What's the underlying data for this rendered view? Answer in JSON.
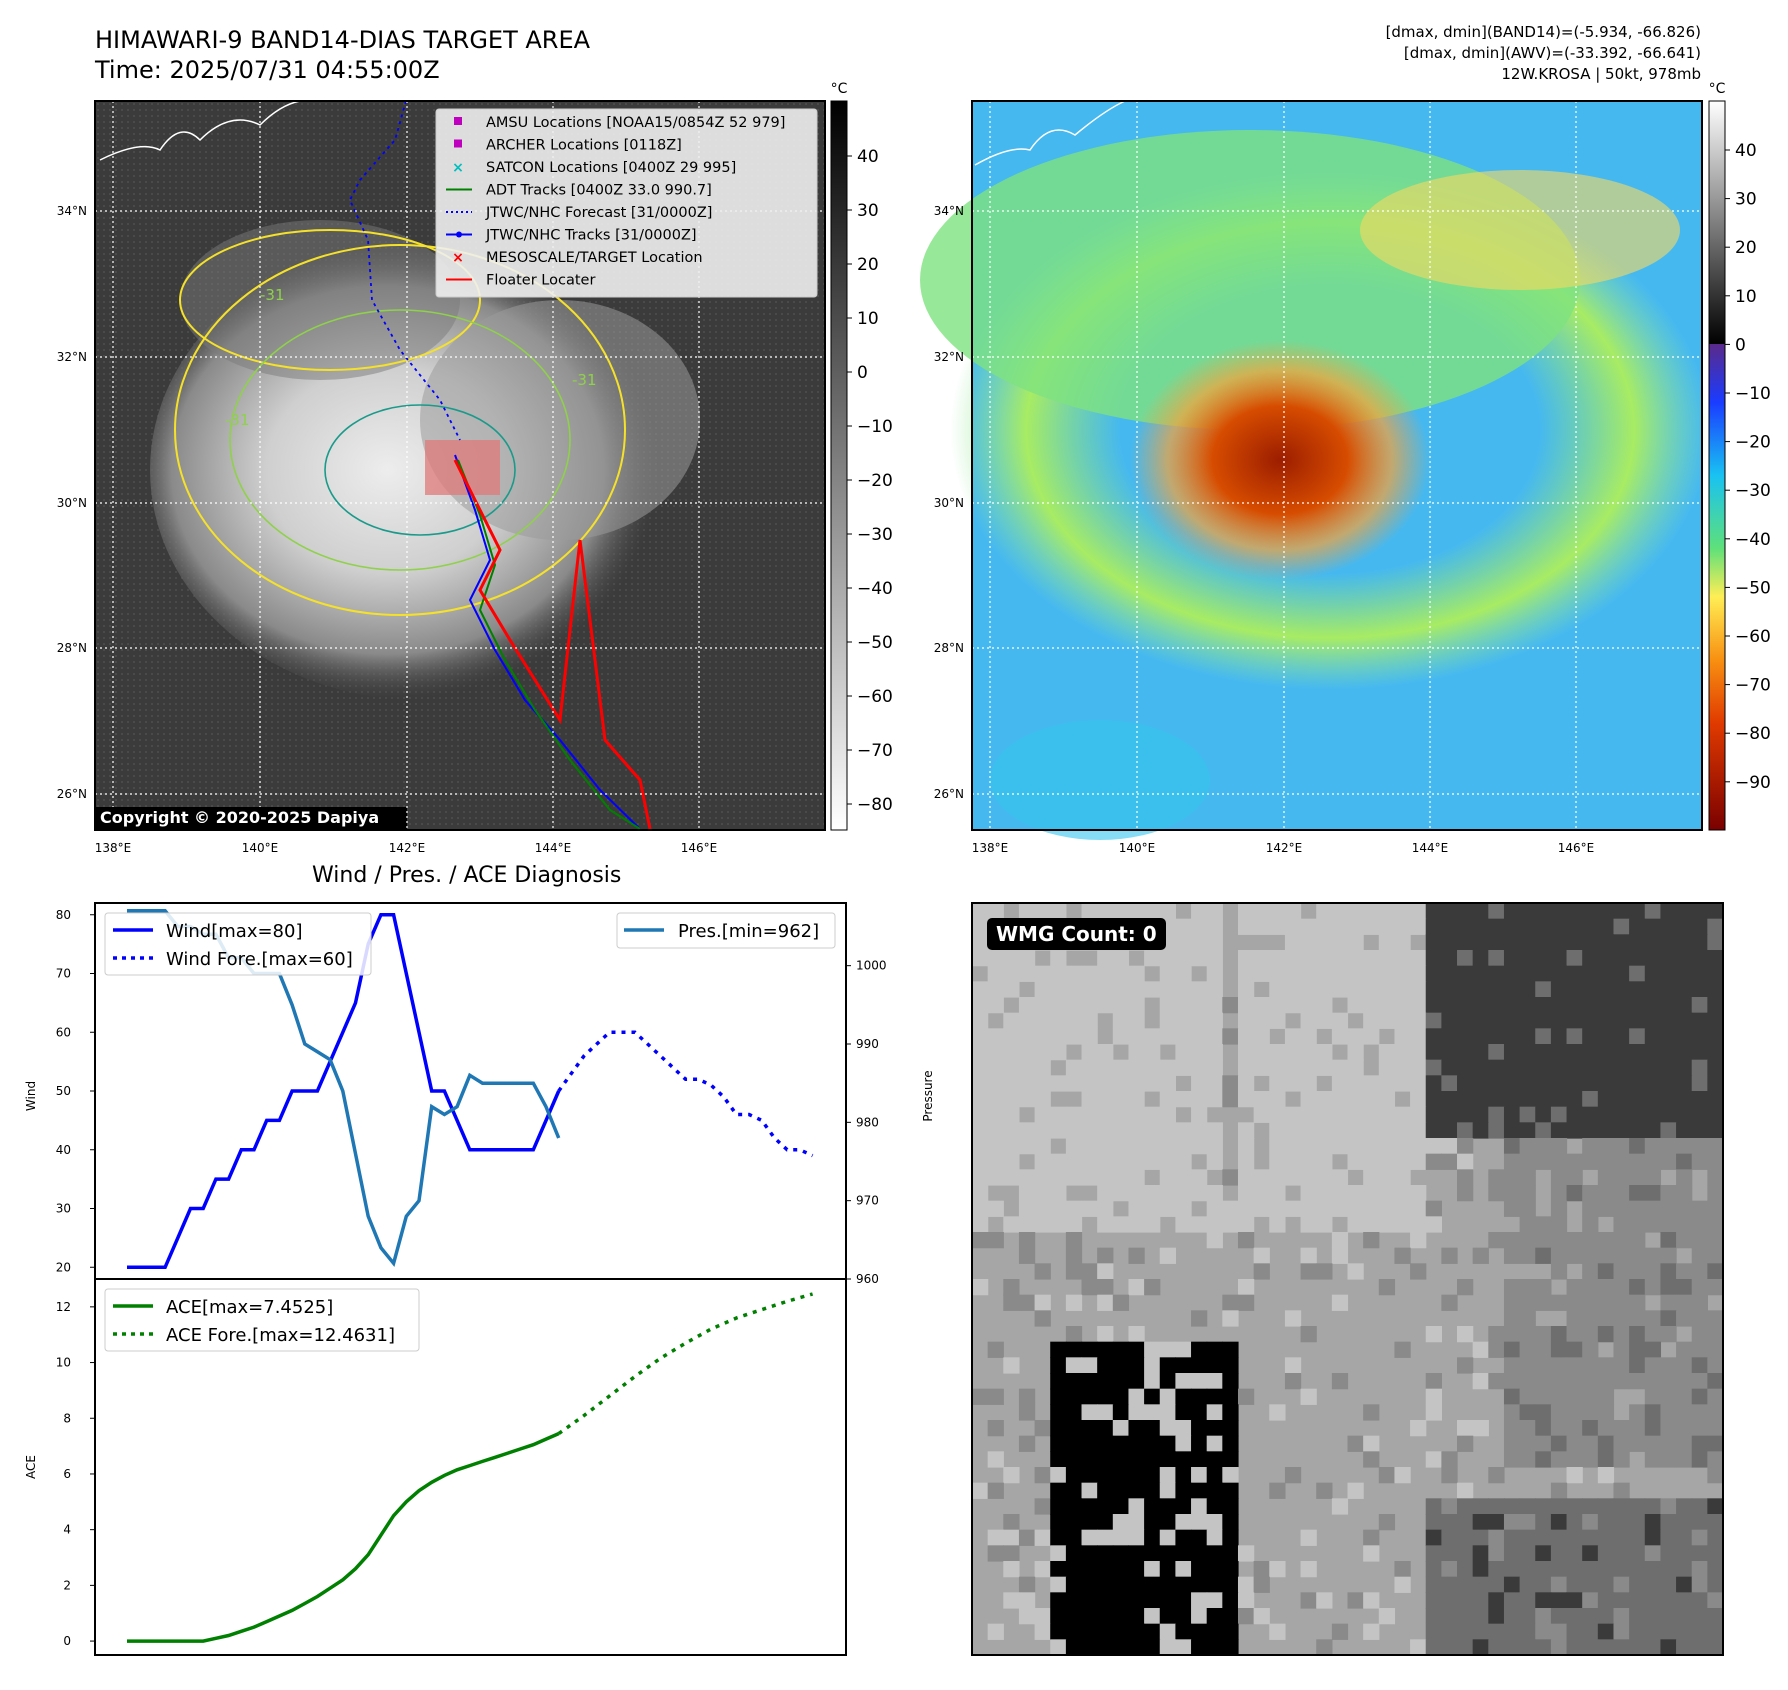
{
  "header": {
    "title_line1": "HIMAWARI-9 BAND14-DIAS TARGET AREA",
    "title_line2": "Time: 2025/07/31 04:55:00Z",
    "info_line1": "[dmax, dmin](BAND14)=(-5.934, -66.826)",
    "info_line2": "[dmax, dmin](AWV)=(-33.392, -66.641)",
    "info_line3": "12W.KROSA | 50kt, 978mb"
  },
  "copyright": "Copyright © 2020-2025 Dapiya",
  "map": {
    "lon_ticks": [
      "138°E",
      "140°E",
      "142°E",
      "144°E",
      "146°E"
    ],
    "lat_ticks": [
      "34°N",
      "32°N",
      "30°N",
      "28°N",
      "26°N"
    ],
    "colorbar_unit": "°C",
    "left_colorbar_ticks": [
      "40",
      "30",
      "20",
      "10",
      "0",
      "−10",
      "−20",
      "−30",
      "−40",
      "−50",
      "−60",
      "−70",
      "−80"
    ],
    "right_colorbar_ticks": [
      "40",
      "30",
      "20",
      "10",
      "0",
      "−10",
      "−20",
      "−30",
      "−40",
      "−50",
      "−60",
      "−70",
      "−80",
      "−90"
    ],
    "contour_labels": [
      "-31",
      "-31",
      "-31"
    ],
    "legend": [
      {
        "label": "AMSU Locations [NOAA15/0854Z 52 979]",
        "marker": "square",
        "color": "#bf00bf"
      },
      {
        "label": "ARCHER Locations [0118Z]",
        "marker": "square",
        "color": "#bf00bf"
      },
      {
        "label": "SATCON Locations [0400Z 29 995]",
        "marker": "x",
        "color": "#00bfbf"
      },
      {
        "label": "ADT Tracks [0400Z 33.0 990.7]",
        "marker": "line",
        "color": "#008000"
      },
      {
        "label": "JTWC/NHC Forecast [31/0000Z]",
        "marker": "dotted",
        "color": "#0000ff"
      },
      {
        "label": "JTWC/NHC Tracks [31/0000Z]",
        "marker": "line-dot",
        "color": "#0000ff"
      },
      {
        "label": "MESOSCALE/TARGET Location",
        "marker": "x",
        "color": "#ff0000"
      },
      {
        "label": "Floater Locater",
        "marker": "line",
        "color": "#ff0000"
      }
    ]
  },
  "diagnosis": {
    "title": "Wind / Pres. / ACE Diagnosis",
    "wind_axis_label": "Wind",
    "pressure_axis_label": "Pressure",
    "ace_axis_label": "ACE",
    "wind_ticks": [
      "80",
      "70",
      "60",
      "50",
      "40",
      "30",
      "20"
    ],
    "pressure_ticks": [
      "1000",
      "990",
      "980",
      "970",
      "960"
    ],
    "ace_ticks": [
      "12",
      "10",
      "8",
      "6",
      "4",
      "2",
      "0"
    ],
    "legend_wind": "Wind[max=80]",
    "legend_wind_fore": "Wind Fore.[max=60]",
    "legend_pres": "Pres.[min=962]",
    "legend_ace": "ACE[max=7.4525]",
    "legend_ace_fore": "ACE Fore.[max=12.4631]"
  },
  "wmg_label": "WMG Count: 0",
  "colors": {
    "wind": "#0000ff",
    "pressure": "#1f77b4",
    "ace": "#008000"
  },
  "chart_data": [
    {
      "type": "line",
      "title": "Wind / Pres. / ACE Diagnosis",
      "ylabel": "Wind",
      "ylim": [
        18,
        82
      ],
      "y2label": "Pressure",
      "y2lim": [
        960,
        1008
      ],
      "series": [
        {
          "name": "Wind[max=80]",
          "axis": "left",
          "x": [
            0,
            1,
            2,
            3,
            4,
            5,
            6,
            7,
            8,
            9,
            10,
            11,
            12,
            13,
            14,
            15,
            16,
            17,
            18,
            19,
            20,
            21,
            22,
            23,
            24,
            25,
            26,
            27,
            28,
            29,
            30,
            31,
            32,
            33,
            34
          ],
          "values": [
            20,
            20,
            20,
            20,
            25,
            30,
            30,
            35,
            35,
            40,
            40,
            45,
            45,
            50,
            50,
            50,
            55,
            60,
            65,
            75,
            80,
            80,
            70,
            60,
            50,
            50,
            45,
            40,
            40,
            40,
            40,
            40,
            40,
            45,
            50
          ]
        },
        {
          "name": "Wind Fore.[max=60]",
          "axis": "left",
          "x": [
            34,
            35,
            36,
            37,
            38,
            39,
            40,
            41,
            42,
            43,
            44,
            45,
            46,
            47,
            48,
            49,
            50,
            51,
            52,
            53,
            54
          ],
          "values": [
            50,
            53,
            56,
            58,
            60,
            60,
            60,
            58,
            56,
            54,
            52,
            52,
            51,
            49,
            46,
            46,
            45,
            42,
            40,
            40,
            39
          ]
        },
        {
          "name": "Pres.[min=962]",
          "axis": "right",
          "x": [
            0,
            1,
            2,
            3,
            4,
            5,
            6,
            7,
            8,
            9,
            10,
            11,
            12,
            13,
            14,
            15,
            16,
            17,
            18,
            19,
            20,
            21,
            22,
            23,
            24,
            25,
            26,
            27,
            28,
            29,
            30,
            31,
            32,
            33,
            34
          ],
          "values": [
            1007,
            1007,
            1007,
            1007,
            1005,
            1005,
            1004,
            1004,
            1001,
            1001,
            999,
            999,
            999,
            995,
            990,
            989,
            988,
            984,
            976,
            968,
            964,
            962,
            968,
            970,
            982,
            981,
            982,
            986,
            985,
            985,
            985,
            985,
            985,
            982,
            978
          ]
        }
      ]
    },
    {
      "type": "line",
      "ylabel": "ACE",
      "ylim": [
        -0.5,
        13
      ],
      "series": [
        {
          "name": "ACE[max=7.4525]",
          "x": [
            0,
            1,
            2,
            3,
            4,
            5,
            6,
            7,
            8,
            9,
            10,
            11,
            12,
            13,
            14,
            15,
            16,
            17,
            18,
            19,
            20,
            21,
            22,
            23,
            24,
            25,
            26,
            27,
            28,
            29,
            30,
            31,
            32,
            33,
            34
          ],
          "values": [
            0,
            0,
            0,
            0,
            0,
            0,
            0,
            0.1,
            0.2,
            0.35,
            0.5,
            0.7,
            0.9,
            1.1,
            1.35,
            1.6,
            1.9,
            2.2,
            2.6,
            3.1,
            3.8,
            4.5,
            5.0,
            5.4,
            5.7,
            5.95,
            6.15,
            6.3,
            6.45,
            6.6,
            6.75,
            6.9,
            7.05,
            7.25,
            7.45
          ]
        },
        {
          "name": "ACE Fore.[max=12.4631]",
          "x": [
            34,
            36,
            38,
            40,
            42,
            44,
            46,
            48,
            50,
            52,
            54
          ],
          "values": [
            7.45,
            8.1,
            8.8,
            9.5,
            10.15,
            10.7,
            11.2,
            11.6,
            11.9,
            12.2,
            12.46
          ]
        }
      ]
    }
  ]
}
